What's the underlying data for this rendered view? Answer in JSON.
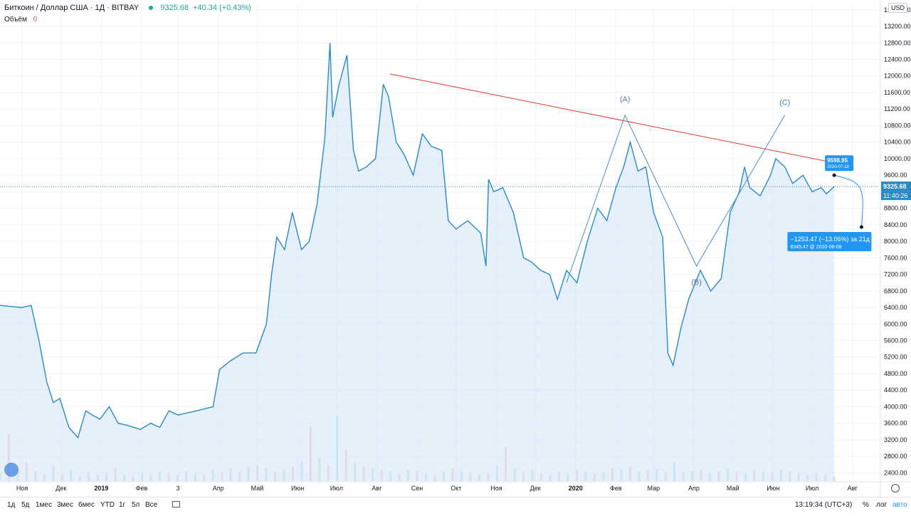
{
  "header": {
    "symbol": "Биткоин / Доллар США · 1Д · BITBAY",
    "price": "9325.68",
    "change": "+40.34 (+0.43%)",
    "volume_label": "Объём",
    "volume_value": "0"
  },
  "currency_badge": "USD",
  "chart_data": {
    "type": "area",
    "title": "",
    "xlabel": "",
    "ylabel": "",
    "ylim": [
      2200,
      13700
    ],
    "y_ticks": [
      2400,
      2800,
      3200,
      3600,
      4000,
      4400,
      4800,
      5200,
      5600,
      6000,
      6400,
      6800,
      7200,
      7600,
      8000,
      8400,
      8800,
      9200,
      9600,
      10000,
      10400,
      10800,
      11200,
      11600,
      12000,
      12400,
      12800,
      13200,
      13600
    ],
    "y_tick_labels": [
      "2400.00",
      "2800.00",
      "3200.00",
      "3600.00",
      "4000.00",
      "4400.00",
      "4800.00",
      "5200.00",
      "5600.00",
      "6000.00",
      "6400.00",
      "6800.00",
      "7200.00",
      "7600.00",
      "8000.00",
      "8400.00",
      "8800.00",
      "9200.00",
      "9600.00",
      "10000.00",
      "10400.00",
      "10800.00",
      "11200.00",
      "11600.00",
      "12000.00",
      "12400.00",
      "12800.00",
      "13200.00",
      "13600.00"
    ],
    "x_range": [
      "2018-10-15",
      "2020-08-22"
    ],
    "x_ticks": [
      {
        "date": "2018-11-01",
        "label": "Ноя"
      },
      {
        "date": "2018-12-01",
        "label": "Дек"
      },
      {
        "date": "2019-01-01",
        "label": "2019"
      },
      {
        "date": "2019-02-01",
        "label": "Фев"
      },
      {
        "date": "2019-03-01",
        "label": "3"
      },
      {
        "date": "2019-04-01",
        "label": "Апр"
      },
      {
        "date": "2019-05-01",
        "label": "Май"
      },
      {
        "date": "2019-06-01",
        "label": "Июн"
      },
      {
        "date": "2019-07-01",
        "label": "Июл"
      },
      {
        "date": "2019-08-01",
        "label": "Авг"
      },
      {
        "date": "2019-09-01",
        "label": "Сен"
      },
      {
        "date": "2019-10-01",
        "label": "Окт"
      },
      {
        "date": "2019-11-01",
        "label": "Ноя"
      },
      {
        "date": "2019-12-01",
        "label": "Дек"
      },
      {
        "date": "2020-01-01",
        "label": "2020"
      },
      {
        "date": "2020-02-01",
        "label": "Фев"
      },
      {
        "date": "2020-03-01",
        "label": "Мар"
      },
      {
        "date": "2020-04-01",
        "label": "Апр"
      },
      {
        "date": "2020-05-01",
        "label": "Май"
      },
      {
        "date": "2020-06-01",
        "label": "Июн"
      },
      {
        "date": "2020-07-01",
        "label": "Июл"
      },
      {
        "date": "2020-08-01",
        "label": "Авг"
      }
    ],
    "series": [
      {
        "values": [
          [
            "2018-10-15",
            6450
          ],
          [
            "2018-10-25",
            6420
          ],
          [
            "2018-11-01",
            6400
          ],
          [
            "2018-11-08",
            6450
          ],
          [
            "2018-11-14",
            5600
          ],
          [
            "2018-11-20",
            4600
          ],
          [
            "2018-11-25",
            4100
          ],
          [
            "2018-11-30",
            4200
          ],
          [
            "2018-12-07",
            3500
          ],
          [
            "2018-12-14",
            3250
          ],
          [
            "2018-12-20",
            3900
          ],
          [
            "2018-12-25",
            3800
          ],
          [
            "2018-12-31",
            3700
          ],
          [
            "2019-01-07",
            4000
          ],
          [
            "2019-01-14",
            3600
          ],
          [
            "2019-01-21",
            3550
          ],
          [
            "2019-01-31",
            3450
          ],
          [
            "2019-02-08",
            3600
          ],
          [
            "2019-02-15",
            3500
          ],
          [
            "2019-02-22",
            3900
          ],
          [
            "2019-03-01",
            3800
          ],
          [
            "2019-03-15",
            3900
          ],
          [
            "2019-03-28",
            4000
          ],
          [
            "2019-04-02",
            4900
          ],
          [
            "2019-04-10",
            5100
          ],
          [
            "2019-04-20",
            5300
          ],
          [
            "2019-04-30",
            5300
          ],
          [
            "2019-05-08",
            6000
          ],
          [
            "2019-05-12",
            7200
          ],
          [
            "2019-05-16",
            8100
          ],
          [
            "2019-05-22",
            7800
          ],
          [
            "2019-05-28",
            8700
          ],
          [
            "2019-06-04",
            7800
          ],
          [
            "2019-06-10",
            8000
          ],
          [
            "2019-06-16",
            8900
          ],
          [
            "2019-06-22",
            10500
          ],
          [
            "2019-06-26",
            12800
          ],
          [
            "2019-06-28",
            11000
          ],
          [
            "2019-07-03",
            11800
          ],
          [
            "2019-07-09",
            12500
          ],
          [
            "2019-07-14",
            10200
          ],
          [
            "2019-07-18",
            9700
          ],
          [
            "2019-07-24",
            9800
          ],
          [
            "2019-07-31",
            10000
          ],
          [
            "2019-08-06",
            11800
          ],
          [
            "2019-08-10",
            11500
          ],
          [
            "2019-08-16",
            10400
          ],
          [
            "2019-08-22",
            10100
          ],
          [
            "2019-08-29",
            9600
          ],
          [
            "2019-09-05",
            10600
          ],
          [
            "2019-09-12",
            10300
          ],
          [
            "2019-09-20",
            10200
          ],
          [
            "2019-09-25",
            8500
          ],
          [
            "2019-10-01",
            8300
          ],
          [
            "2019-10-10",
            8500
          ],
          [
            "2019-10-20",
            8200
          ],
          [
            "2019-10-24",
            7400
          ],
          [
            "2019-10-26",
            9500
          ],
          [
            "2019-10-30",
            9200
          ],
          [
            "2019-11-06",
            9300
          ],
          [
            "2019-11-14",
            8700
          ],
          [
            "2019-11-22",
            7600
          ],
          [
            "2019-11-28",
            7500
          ],
          [
            "2019-12-05",
            7300
          ],
          [
            "2019-12-12",
            7200
          ],
          [
            "2019-12-18",
            6600
          ],
          [
            "2019-12-25",
            7300
          ],
          [
            "2020-01-02",
            7000
          ],
          [
            "2020-01-10",
            8000
          ],
          [
            "2020-01-18",
            8800
          ],
          [
            "2020-01-25",
            8500
          ],
          [
            "2020-02-01",
            9300
          ],
          [
            "2020-02-07",
            9800
          ],
          [
            "2020-02-12",
            10400
          ],
          [
            "2020-02-18",
            9700
          ],
          [
            "2020-02-24",
            9800
          ],
          [
            "2020-03-01",
            8700
          ],
          [
            "2020-03-08",
            8100
          ],
          [
            "2020-03-12",
            5300
          ],
          [
            "2020-03-16",
            5000
          ],
          [
            "2020-03-22",
            5900
          ],
          [
            "2020-03-28",
            6600
          ],
          [
            "2020-04-06",
            7300
          ],
          [
            "2020-04-14",
            6800
          ],
          [
            "2020-04-22",
            7100
          ],
          [
            "2020-04-29",
            8700
          ],
          [
            "2020-05-06",
            9200
          ],
          [
            "2020-05-10",
            9800
          ],
          [
            "2020-05-14",
            9300
          ],
          [
            "2020-05-22",
            9100
          ],
          [
            "2020-05-30",
            9600
          ],
          [
            "2020-06-03",
            10000
          ],
          [
            "2020-06-10",
            9800
          ],
          [
            "2020-06-16",
            9400
          ],
          [
            "2020-06-24",
            9600
          ],
          [
            "2020-07-01",
            9200
          ],
          [
            "2020-07-08",
            9300
          ],
          [
            "2020-07-12",
            9150
          ],
          [
            "2020-07-18",
            9325.68
          ]
        ]
      }
    ],
    "volume": [
      0.05,
      0.3,
      0.08,
      0.12,
      0.06,
      0.04,
      0.1,
      0.05,
      0.07,
      0.03,
      0.06,
      0.04,
      0.05,
      0.08,
      0.04,
      0.03,
      0.05,
      0.04,
      0.06,
      0.05,
      0.04,
      0.06,
      0.05,
      0.04,
      0.07,
      0.05,
      0.08,
      0.06,
      0.09,
      0.1,
      0.08,
      0.06,
      0.07,
      0.09,
      0.12,
      0.35,
      0.15,
      0.1,
      0.42,
      0.2,
      0.12,
      0.09,
      0.08,
      0.07,
      0.06,
      0.05,
      0.07,
      0.06,
      0.05,
      0.04,
      0.06,
      0.08,
      0.06,
      0.05,
      0.04,
      0.05,
      0.1,
      0.22,
      0.08,
      0.06,
      0.07,
      0.05,
      0.04,
      0.06,
      0.05,
      0.07,
      0.06,
      0.05,
      0.06,
      0.08,
      0.07,
      0.09,
      0.06,
      0.07,
      0.08,
      0.06,
      0.12,
      0.05,
      0.06,
      0.07,
      0.05,
      0.06,
      0.08,
      0.06,
      0.05,
      0.07,
      0.06,
      0.05,
      0.07,
      0.06,
      0.05,
      0.04,
      0.05,
      0.04,
      0.03
    ],
    "current_price": 9325.68,
    "price_label": "9325.68",
    "countdown_label": "11:40:26",
    "trend_line": {
      "from": [
        "2019-08-11",
        12050
      ],
      "to": [
        "2020-07-18",
        9900
      ],
      "color": "#e53935"
    },
    "wave_lines": [
      [
        "2019-12-25",
        7000
      ],
      [
        "2020-02-08",
        11050
      ],
      [
        "2020-04-03",
        7400
      ],
      [
        "2020-06-10",
        11050
      ]
    ],
    "wave_labels": [
      {
        "text": "(A)",
        "at": [
          "2020-02-08",
          11380
        ]
      },
      {
        "text": "(B)",
        "at": [
          "2020-04-03",
          6950
        ]
      },
      {
        "text": "(C)",
        "at": [
          "2020-06-10",
          11300
        ]
      }
    ],
    "projection": {
      "start": [
        "2020-07-18",
        9598.95
      ],
      "end": [
        "2020-08-08",
        8345.47
      ],
      "start_price": "9598.95",
      "start_date": "2020-07-18",
      "change_text": "−1253.47 (−13.06%) за 21д",
      "end_text": "8345.47 @ 2020-08-08"
    },
    "grid": true,
    "colors": {
      "line": "#2a8ac4",
      "fill": "#cfe4f7",
      "axis_text": "#131722",
      "grid": "#f0f3fa",
      "accent": "#2196f3"
    }
  },
  "timeframes": [
    "1д",
    "5д",
    "1мес",
    "3мес",
    "6мес",
    "YTD",
    "1г",
    "5л",
    "Все"
  ],
  "bottom_right": {
    "time": "13:19:34 (UTC+3)",
    "percent": "%",
    "log": "лог",
    "auto": "авто"
  }
}
